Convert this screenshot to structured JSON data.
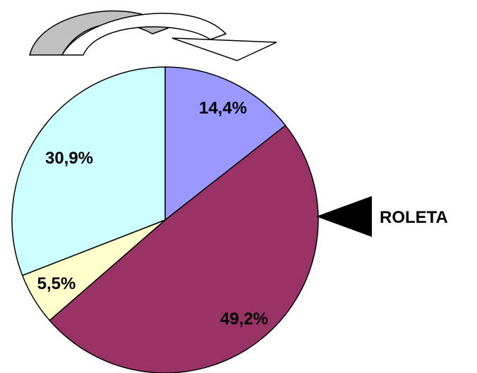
{
  "chart_data": {
    "type": "pie",
    "start": "top",
    "direction": "clockwise",
    "slices": [
      {
        "value": 14.4,
        "label": "14,4%",
        "color": "#9999ff"
      },
      {
        "value": 49.2,
        "label": "49,2%",
        "color": "#993366"
      },
      {
        "value": 5.5,
        "label": "5,5%",
        "color": "#ffffcc"
      },
      {
        "value": 30.9,
        "label": "30,9%",
        "color": "#ccffff"
      }
    ],
    "pointer": {
      "label": "ROLETA",
      "color": "#000000"
    },
    "rotation_arrow": {
      "direction": "clockwise",
      "color": "#c0c0c0"
    }
  }
}
